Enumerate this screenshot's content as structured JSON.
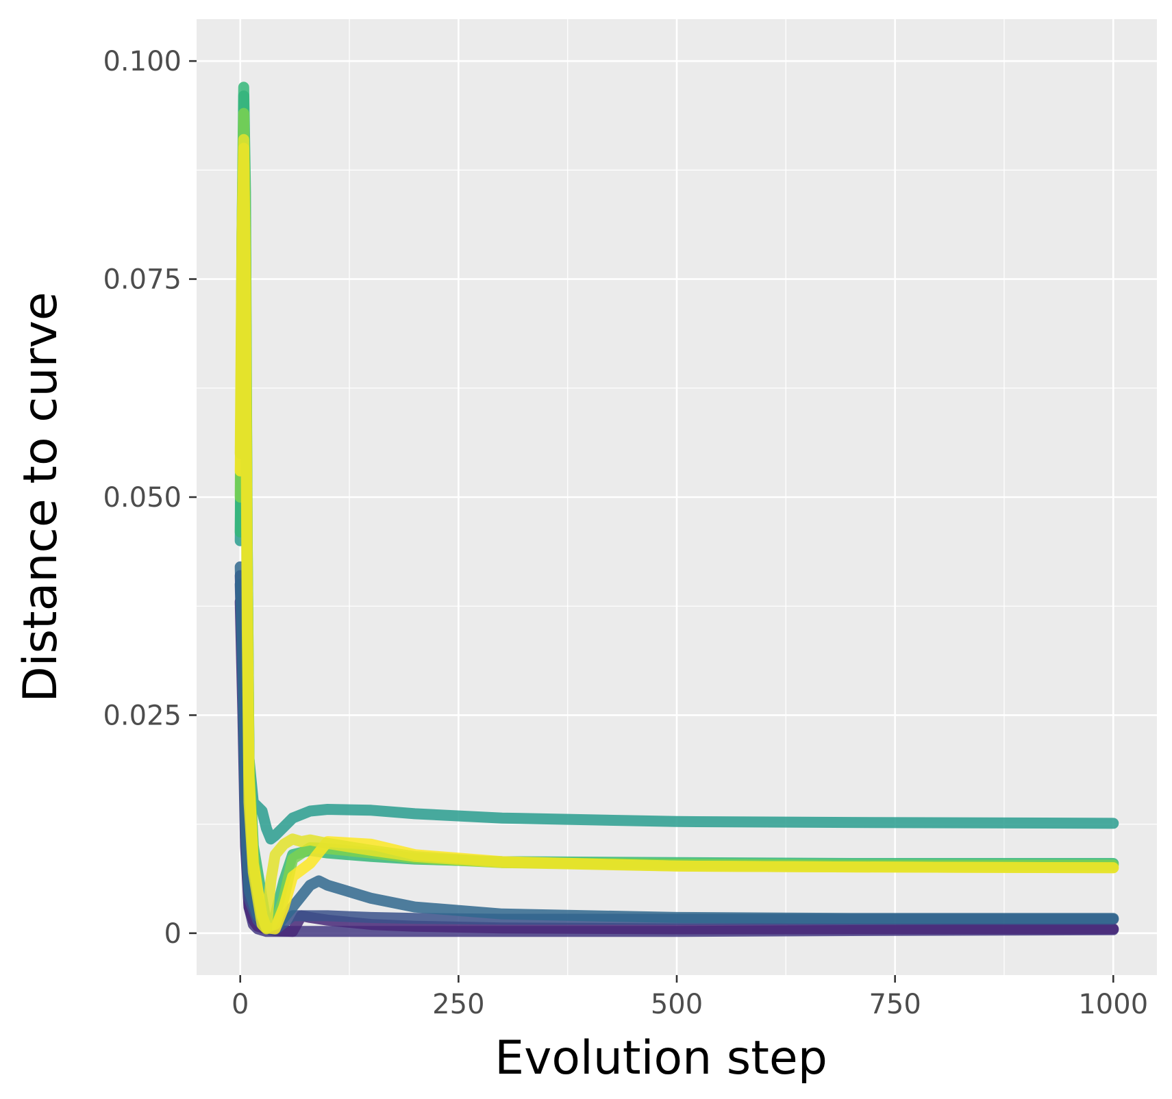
{
  "chart_data": {
    "type": "line",
    "title": "",
    "xlabel": "Evolution step",
    "ylabel": "Distance to curve",
    "xlim": [
      -50,
      1050
    ],
    "ylim": [
      -0.0048,
      0.1048
    ],
    "x_ticks": [
      0,
      250,
      500,
      750,
      1000
    ],
    "x_tick_labels": [
      "0",
      "250",
      "500",
      "750",
      "1000"
    ],
    "y_ticks": [
      0,
      0.025,
      0.05,
      0.075,
      0.1
    ],
    "y_tick_labels": [
      "0",
      "0.025",
      "0.050",
      "0.075",
      "0.100"
    ],
    "grid": true,
    "legend": "none",
    "colors": {
      "panel_bg": "#ebebeb",
      "grid": "#ffffff"
    },
    "series": [
      {
        "color": "#443a83",
        "x": [
          0,
          3,
          6,
          10,
          15,
          20,
          30,
          40,
          60,
          80,
          100,
          150,
          200,
          300,
          500,
          700,
          1000
        ],
        "y": [
          0.041,
          0.03,
          0.012,
          0.003,
          0.001,
          0.0005,
          0.0002,
          0.0002,
          0.0002,
          0.0002,
          0.0002,
          0.0002,
          0.0002,
          0.0002,
          0.0002,
          0.0003,
          0.0004
        ]
      },
      {
        "color": "#482878",
        "x": [
          0,
          3,
          6,
          10,
          15,
          20,
          30,
          40,
          60,
          70,
          80,
          100,
          150,
          200,
          300,
          500,
          700,
          1000
        ],
        "y": [
          0.038,
          0.025,
          0.01,
          0.003,
          0.0015,
          0.0008,
          0.0005,
          0.0003,
          0.0002,
          0.002,
          0.0018,
          0.0015,
          0.001,
          0.0008,
          0.0006,
          0.0005,
          0.0005,
          0.0005
        ]
      },
      {
        "color": "#3b528b",
        "x": [
          0,
          3,
          6,
          10,
          20,
          30,
          40,
          60,
          80,
          100,
          150,
          200,
          300,
          500,
          700,
          1000
        ],
        "y": [
          0.04,
          0.028,
          0.011,
          0.004,
          0.0015,
          0.0005,
          0.0004,
          0.002,
          0.002,
          0.002,
          0.0018,
          0.0017,
          0.0016,
          0.0016,
          0.0016,
          0.0016
        ]
      },
      {
        "color": "#31688e",
        "x": [
          0,
          3,
          6,
          10,
          20,
          30,
          40,
          60,
          80,
          90,
          100,
          150,
          200,
          300,
          500,
          700,
          1000
        ],
        "y": [
          0.042,
          0.03,
          0.013,
          0.005,
          0.002,
          0.001,
          0.0006,
          0.003,
          0.0055,
          0.006,
          0.0055,
          0.004,
          0.003,
          0.0022,
          0.0018,
          0.0017,
          0.0017
        ]
      },
      {
        "color": "#2a9d8f",
        "x": [
          0,
          2,
          4,
          6,
          8,
          10,
          15,
          20,
          25,
          30,
          35,
          40,
          50,
          60,
          80,
          100,
          150,
          200,
          300,
          500,
          700,
          1000
        ],
        "y": [
          0.045,
          0.07,
          0.096,
          0.08,
          0.04,
          0.02,
          0.015,
          0.0145,
          0.014,
          0.012,
          0.0108,
          0.0112,
          0.0122,
          0.0132,
          0.014,
          0.0142,
          0.0141,
          0.0137,
          0.0132,
          0.0128,
          0.0127,
          0.0126
        ]
      },
      {
        "color": "#35b779",
        "x": [
          0,
          2,
          4,
          6,
          8,
          10,
          15,
          20,
          25,
          30,
          35,
          40,
          50,
          60,
          80,
          100,
          150,
          200,
          300,
          500,
          700,
          1000
        ],
        "y": [
          0.046,
          0.08,
          0.097,
          0.085,
          0.045,
          0.02,
          0.01,
          0.007,
          0.004,
          0.001,
          0.0008,
          0.002,
          0.006,
          0.009,
          0.0095,
          0.0092,
          0.0088,
          0.0085,
          0.0082,
          0.0081,
          0.008,
          0.008
        ]
      },
      {
        "color": "#7ad151",
        "x": [
          0,
          2,
          4,
          6,
          8,
          10,
          15,
          20,
          25,
          30,
          40,
          50,
          60,
          80,
          100,
          150,
          200,
          300,
          500,
          700,
          1000
        ],
        "y": [
          0.05,
          0.08,
          0.094,
          0.08,
          0.045,
          0.02,
          0.009,
          0.005,
          0.002,
          0.0008,
          0.001,
          0.004,
          0.0085,
          0.0098,
          0.0097,
          0.0092,
          0.0086,
          0.0081,
          0.0079,
          0.0078,
          0.0078
        ]
      },
      {
        "color": "#fde725",
        "x": [
          0,
          2,
          4,
          6,
          8,
          10,
          15,
          20,
          25,
          30,
          40,
          50,
          60,
          80,
          100,
          150,
          200,
          300,
          500,
          700,
          1000
        ],
        "y": [
          0.053,
          0.075,
          0.09,
          0.075,
          0.04,
          0.018,
          0.008,
          0.005,
          0.002,
          0.0006,
          0.0005,
          0.003,
          0.0065,
          0.008,
          0.0105,
          0.0102,
          0.009,
          0.0082,
          0.0077,
          0.0076,
          0.0075
        ]
      },
      {
        "color": "#e3e32c",
        "x": [
          0,
          2,
          4,
          6,
          8,
          10,
          15,
          20,
          25,
          30,
          35,
          40,
          50,
          60,
          70,
          80,
          100,
          150,
          200,
          300,
          500,
          700,
          1000
        ],
        "y": [
          0.055,
          0.08,
          0.091,
          0.07,
          0.035,
          0.015,
          0.007,
          0.004,
          0.001,
          0.0005,
          0.006,
          0.009,
          0.0102,
          0.0108,
          0.0105,
          0.0107,
          0.0103,
          0.0095,
          0.0088,
          0.0081,
          0.0077,
          0.0076,
          0.0075
        ]
      }
    ]
  }
}
